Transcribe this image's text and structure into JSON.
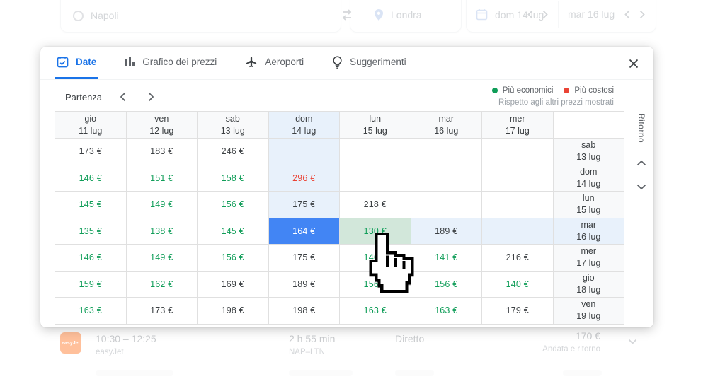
{
  "colors": {
    "accent": "#1a73e8",
    "selected_cell": "#4285f4",
    "highlight": "#e8f1fb",
    "hover_cell": "#d2e7da",
    "cheaper_green": "#0f9d58",
    "pricier_red": "#ea4335"
  },
  "search": {
    "origin": "Napoli",
    "destination": "Londra",
    "depart_date": "dom 14 lug",
    "return_date": "mar 16 lug"
  },
  "modal": {
    "tabs": [
      {
        "label": "Date"
      },
      {
        "label": "Grafico dei prezzi"
      },
      {
        "label": "Aeroporti"
      },
      {
        "label": "Suggerimenti"
      }
    ],
    "partenza_label": "Partenza",
    "ritorno_label": "Ritorno",
    "legend": {
      "cheaper": "Più economici",
      "pricier": "Più costosi",
      "note": "Rispetto agli altri prezzi mostrati"
    },
    "matrix": {
      "col_headers": [
        {
          "day": "gio",
          "date": "11 lug",
          "hl": false
        },
        {
          "day": "ven",
          "date": "12 lug",
          "hl": false
        },
        {
          "day": "sab",
          "date": "13 lug",
          "hl": false
        },
        {
          "day": "dom",
          "date": "14 lug",
          "hl": true
        },
        {
          "day": "lun",
          "date": "15 lug",
          "hl": false
        },
        {
          "day": "mar",
          "date": "16 lug",
          "hl": false
        },
        {
          "day": "mer",
          "date": "17 lug",
          "hl": false
        }
      ],
      "rows": [
        {
          "day": "sab",
          "date": "13 lug",
          "hl": false,
          "cells": [
            {
              "t": "173 €",
              "c": "k"
            },
            {
              "t": "183 €",
              "c": "k"
            },
            {
              "t": "246 €",
              "c": "k"
            },
            {
              "t": "",
              "bg": "hl"
            },
            {
              "t": ""
            },
            {
              "t": ""
            },
            {
              "t": ""
            }
          ]
        },
        {
          "day": "dom",
          "date": "14 lug",
          "hl": false,
          "cells": [
            {
              "t": "146 €",
              "c": "g"
            },
            {
              "t": "151 €",
              "c": "g"
            },
            {
              "t": "158 €",
              "c": "g"
            },
            {
              "t": "296 €",
              "c": "r",
              "bg": "hl"
            },
            {
              "t": ""
            },
            {
              "t": ""
            },
            {
              "t": ""
            }
          ]
        },
        {
          "day": "lun",
          "date": "15 lug",
          "hl": false,
          "cells": [
            {
              "t": "145 €",
              "c": "g"
            },
            {
              "t": "149 €",
              "c": "g"
            },
            {
              "t": "156 €",
              "c": "g"
            },
            {
              "t": "175 €",
              "c": "k",
              "bg": "hl"
            },
            {
              "t": "218 €",
              "c": "k"
            },
            {
              "t": ""
            },
            {
              "t": ""
            }
          ]
        },
        {
          "day": "mar",
          "date": "16 lug",
          "hl": true,
          "cells": [
            {
              "t": "135 €",
              "c": "g"
            },
            {
              "t": "138 €",
              "c": "g"
            },
            {
              "t": "145 €",
              "c": "g"
            },
            {
              "t": "164 €",
              "c": "w",
              "bg": "sel"
            },
            {
              "t": "130 €",
              "c": "g",
              "bg": "hov"
            },
            {
              "t": "189 €",
              "c": "k",
              "bg": "hl"
            },
            {
              "t": "",
              "bg": "hl"
            }
          ]
        },
        {
          "day": "mer",
          "date": "17 lug",
          "hl": false,
          "cells": [
            {
              "t": "146 €",
              "c": "g"
            },
            {
              "t": "149 €",
              "c": "g"
            },
            {
              "t": "156 €",
              "c": "g"
            },
            {
              "t": "175 €",
              "c": "k"
            },
            {
              "t": "146 €",
              "c": "g"
            },
            {
              "t": "141 €",
              "c": "g"
            },
            {
              "t": "216 €",
              "c": "k"
            }
          ]
        },
        {
          "day": "gio",
          "date": "18 lug",
          "hl": false,
          "cells": [
            {
              "t": "159 €",
              "c": "g"
            },
            {
              "t": "162 €",
              "c": "g"
            },
            {
              "t": "169 €",
              "c": "k"
            },
            {
              "t": "189 €",
              "c": "k"
            },
            {
              "t": "156 €",
              "c": "g"
            },
            {
              "t": "156 €",
              "c": "g"
            },
            {
              "t": "140 €",
              "c": "g"
            }
          ]
        },
        {
          "day": "ven",
          "date": "19 lug",
          "hl": false,
          "cells": [
            {
              "t": "163 €",
              "c": "g"
            },
            {
              "t": "173 €",
              "c": "k"
            },
            {
              "t": "198 €",
              "c": "k"
            },
            {
              "t": "198 €",
              "c": "k"
            },
            {
              "t": "163 €",
              "c": "g"
            },
            {
              "t": "163 €",
              "c": "g"
            },
            {
              "t": "179 €",
              "c": "k"
            }
          ]
        }
      ]
    }
  },
  "result_row": {
    "time": "10:30 – 12:25",
    "airline": "easyJet",
    "duration": "2 h 55 min",
    "route": "NAP–LTN",
    "stops": "Diretto",
    "price": "170 €",
    "fare_type": "Andata e ritorno"
  }
}
